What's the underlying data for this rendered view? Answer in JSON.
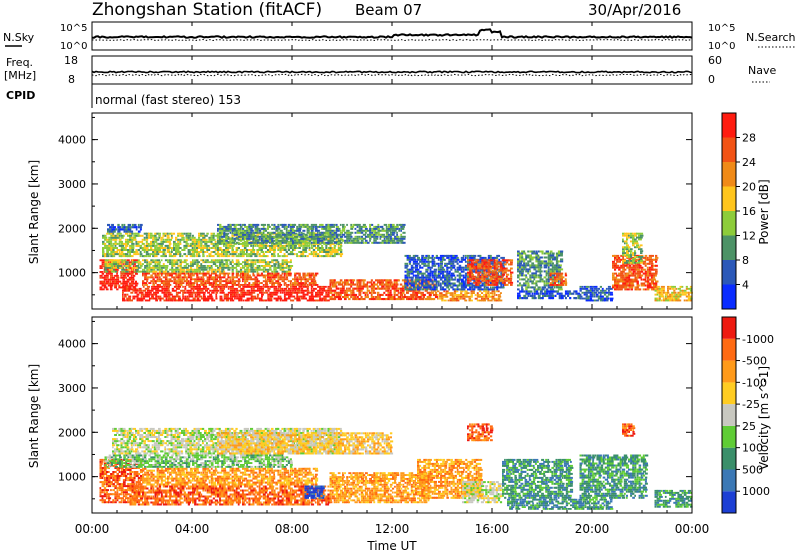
{
  "header": {
    "station": "Zhongshan Station (fitACF)",
    "beam": "Beam 07",
    "date": "30/Apr/2016"
  },
  "top_panels": {
    "nsky_label": "N.Sky",
    "nsky_ticks": [
      "10^5",
      "10^0"
    ],
    "nsearch_label": "N.Search",
    "nsearch_ticks": [
      "10^5",
      "10^0"
    ],
    "freq_label_1": "Freq.",
    "freq_label_2": "[MHz]",
    "freq_ticks": [
      "18",
      "8"
    ],
    "nave_label": "Nave",
    "nave_ticks": [
      "60",
      "0"
    ],
    "cpid_label": "CPID",
    "cpid_value": "normal (fast stereo) 153"
  },
  "x_axis": {
    "label": "Time UT",
    "ticks": [
      "00:00",
      "04:00",
      "08:00",
      "12:00",
      "16:00",
      "20:00",
      "00:00"
    ]
  },
  "chart_data": [
    {
      "type": "heatmap",
      "name": "power",
      "ylabel": "Slant Range [km]",
      "yticks": [
        "1000",
        "2000",
        "3000",
        "4000"
      ],
      "ylim": [
        180,
        4600
      ],
      "xlim": [
        0,
        24
      ],
      "colorbar_label": "Power [dB]",
      "colorbar_ticks": [
        "4",
        "8",
        "12",
        "16",
        "20",
        "24",
        "28"
      ],
      "colors": [
        "#0a2cff",
        "#2b58b8",
        "#4c9266",
        "#8dcc3a",
        "#ffc51c",
        "#f08a17",
        "#f25315",
        "#ff1c10"
      ],
      "regions": [
        {
          "t0": 0.3,
          "t1": 1.8,
          "r0": 600,
          "r1": 1300,
          "level": 7
        },
        {
          "t0": 1.2,
          "t1": 9.5,
          "r0": 350,
          "r1": 700,
          "level": 7
        },
        {
          "t0": 9.5,
          "t1": 13.8,
          "r0": 380,
          "r1": 850,
          "level": 6
        },
        {
          "t0": 13.8,
          "t1": 16.4,
          "r0": 350,
          "r1": 600,
          "level": 5
        },
        {
          "t0": 2.0,
          "t1": 9.0,
          "r0": 700,
          "r1": 1000,
          "level": 6
        },
        {
          "t0": 0.5,
          "t1": 8.0,
          "r0": 1000,
          "r1": 1300,
          "level": 3
        },
        {
          "t0": 0.4,
          "t1": 10.0,
          "r0": 1350,
          "r1": 1900,
          "level": 3
        },
        {
          "t0": 5.0,
          "t1": 12.5,
          "r0": 1650,
          "r1": 2100,
          "level": 2
        },
        {
          "t0": 0.6,
          "t1": 2.0,
          "r0": 1900,
          "r1": 2100,
          "level": 1
        },
        {
          "t0": 12.5,
          "t1": 16.5,
          "r0": 600,
          "r1": 1400,
          "level": 1
        },
        {
          "t0": 15.0,
          "t1": 16.8,
          "r0": 700,
          "r1": 1300,
          "level": 6
        },
        {
          "t0": 17.0,
          "t1": 18.8,
          "r0": 600,
          "r1": 1500,
          "level": 2
        },
        {
          "t0": 18.3,
          "t1": 19.0,
          "r0": 700,
          "r1": 1000,
          "level": 6
        },
        {
          "t0": 17.0,
          "t1": 19.5,
          "r0": 400,
          "r1": 600,
          "level": 1
        },
        {
          "t0": 19.5,
          "t1": 20.8,
          "r0": 350,
          "r1": 700,
          "level": 1
        },
        {
          "t0": 20.8,
          "t1": 22.6,
          "r0": 600,
          "r1": 1400,
          "level": 6
        },
        {
          "t0": 21.2,
          "t1": 22.0,
          "r0": 1200,
          "r1": 1900,
          "level": 3
        },
        {
          "t0": 22.5,
          "t1": 24.0,
          "r0": 350,
          "r1": 700,
          "level": 4
        }
      ]
    },
    {
      "type": "heatmap",
      "name": "velocity",
      "ylabel": "Slant Range [km]",
      "yticks": [
        "1000",
        "2000",
        "3000",
        "4000"
      ],
      "ylim": [
        180,
        4600
      ],
      "xlim": [
        0,
        24
      ],
      "colorbar_label": "Velocity [m s^-1]",
      "colorbar_ticks": [
        "1000",
        "500",
        "100",
        "25",
        "-25",
        "-100",
        "-500",
        "-1000"
      ],
      "colors": [
        "#1c3fd4",
        "#3b78b5",
        "#3a8f6a",
        "#5fcc35",
        "#c8c8c0",
        "#ffcc22",
        "#ff9a1a",
        "#ff6a12",
        "#ee1a10"
      ],
      "regions": [
        {
          "t0": 0.3,
          "t1": 2.0,
          "r0": 400,
          "r1": 1400,
          "level": 7
        },
        {
          "t0": 1.5,
          "t1": 9.5,
          "r0": 350,
          "r1": 800,
          "level": 7
        },
        {
          "t0": 2.0,
          "t1": 9.0,
          "r0": 800,
          "r1": 1200,
          "level": 6
        },
        {
          "t0": 0.5,
          "t1": 8.0,
          "r0": 1200,
          "r1": 1500,
          "level": 3
        },
        {
          "t0": 0.8,
          "t1": 10.0,
          "r0": 1500,
          "r1": 2100,
          "level": 4
        },
        {
          "t0": 5.0,
          "t1": 12.0,
          "r0": 1500,
          "r1": 2000,
          "level": 5
        },
        {
          "t0": 9.5,
          "t1": 13.5,
          "r0": 400,
          "r1": 1100,
          "level": 6
        },
        {
          "t0": 8.5,
          "t1": 9.3,
          "r0": 500,
          "r1": 800,
          "level": 0
        },
        {
          "t0": 13.0,
          "t1": 15.6,
          "r0": 500,
          "r1": 1400,
          "level": 6
        },
        {
          "t0": 14.8,
          "t1": 16.4,
          "r0": 400,
          "r1": 900,
          "level": 4
        },
        {
          "t0": 15.0,
          "t1": 16.0,
          "r0": 1800,
          "r1": 2200,
          "level": 7
        },
        {
          "t0": 16.4,
          "t1": 19.2,
          "r0": 500,
          "r1": 1400,
          "level": 2
        },
        {
          "t0": 16.6,
          "t1": 20.8,
          "r0": 250,
          "r1": 500,
          "level": 2
        },
        {
          "t0": 19.5,
          "t1": 22.2,
          "r0": 500,
          "r1": 1500,
          "level": 2
        },
        {
          "t0": 21.2,
          "t1": 21.7,
          "r0": 1900,
          "r1": 2200,
          "level": 7
        },
        {
          "t0": 22.5,
          "t1": 24.0,
          "r0": 300,
          "r1": 700,
          "level": 2
        }
      ]
    }
  ]
}
